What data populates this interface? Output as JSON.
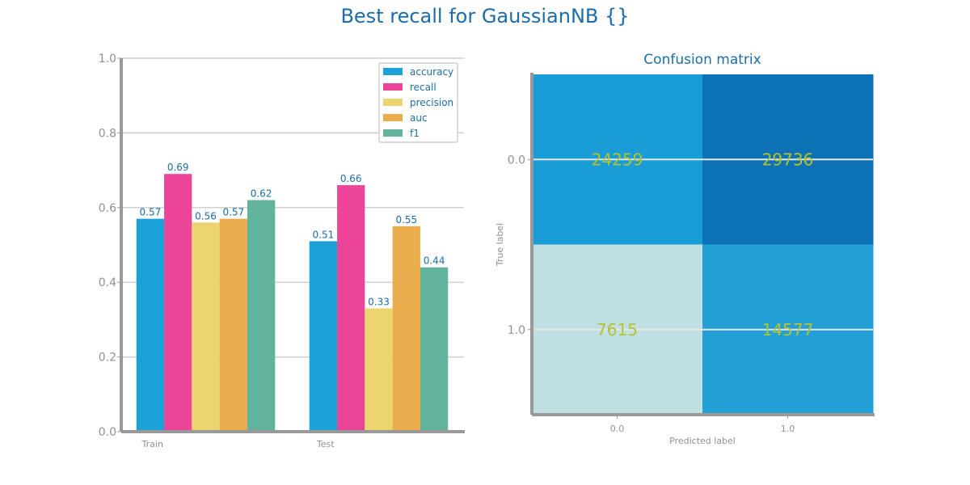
{
  "figure": {
    "title": "Best recall for GaussianNB {}"
  },
  "chart_data": [
    {
      "type": "bar",
      "title": "",
      "xlabel": "",
      "ylabel": "",
      "categories": [
        "Train",
        "Test"
      ],
      "ylim": [
        0,
        1.0
      ],
      "yticks": [
        "0.0",
        "0.2",
        "0.4",
        "0.6",
        "0.8",
        "1.0"
      ],
      "grid": true,
      "legend_position": "top-right",
      "series": [
        {
          "name": "accuracy",
          "values": [
            0.57,
            0.51
          ],
          "labels": [
            "0.57",
            "0.51"
          ],
          "color": "#1ba1d8"
        },
        {
          "name": "recall",
          "values": [
            0.69,
            0.66
          ],
          "labels": [
            "0.69",
            "0.66"
          ],
          "color": "#ea4599"
        },
        {
          "name": "precision",
          "values": [
            0.56,
            0.33
          ],
          "labels": [
            "0.56",
            "0.33"
          ],
          "color": "#ecd471"
        },
        {
          "name": "auc",
          "values": [
            0.57,
            0.55
          ],
          "labels": [
            "0.57",
            "0.55"
          ],
          "color": "#e9ad4c"
        },
        {
          "name": "f1",
          "values": [
            0.62,
            0.44
          ],
          "labels": [
            "0.62",
            "0.44"
          ],
          "color": "#62b39d"
        }
      ]
    },
    {
      "type": "heatmap",
      "title": "Confusion matrix",
      "xlabel": "Predicted label",
      "ylabel": "True label",
      "x_ticks": [
        "0.0",
        "1.0"
      ],
      "y_ticks": [
        "0.0",
        "1.0"
      ],
      "matrix": [
        [
          24259,
          29736
        ],
        [
          7615,
          14577
        ]
      ],
      "matrix_labels": [
        [
          "24259",
          "29736"
        ],
        [
          "7615",
          "14577"
        ]
      ],
      "cell_colors": [
        [
          "#1a9cd6",
          "#0d72b5"
        ],
        [
          "#c0dfe3",
          "#22a0d5"
        ]
      ],
      "value_text_color": "#b5c32d"
    }
  ]
}
